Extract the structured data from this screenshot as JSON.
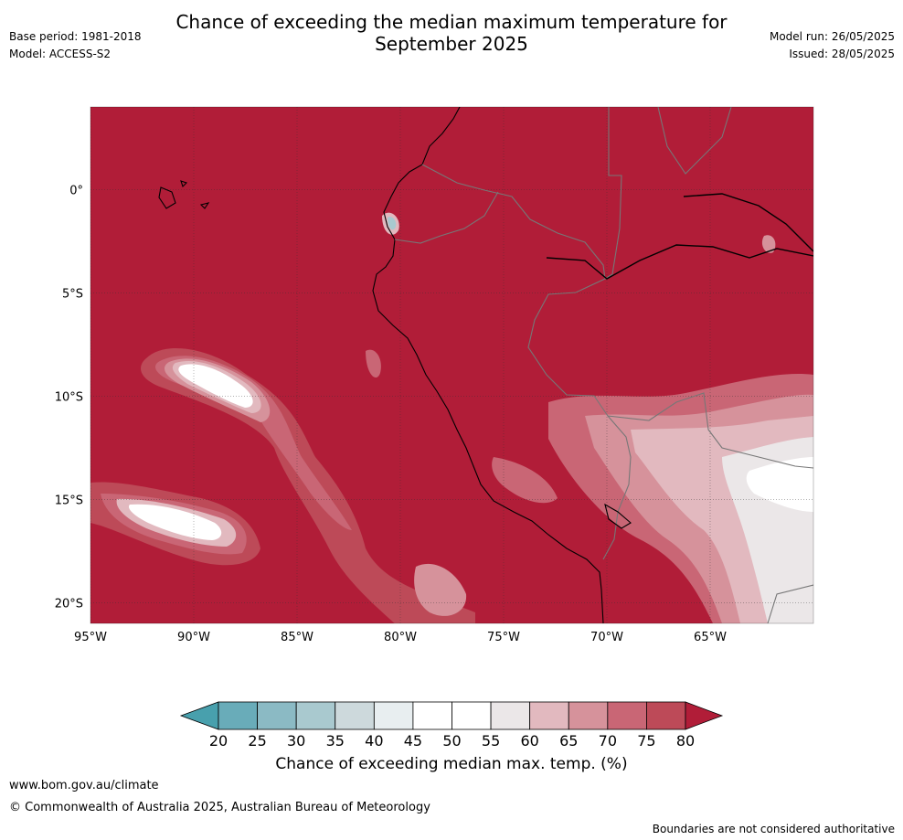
{
  "header": {
    "title_line1": "Chance of exceeding the median maximum temperature for",
    "title_line2": "September 2025",
    "base_period": "Base period: 1981-2018",
    "model": "Model: ACCESS-S2",
    "model_run": "Model run: 26/05/2025",
    "issued": "Issued: 28/05/2025"
  },
  "map": {
    "lon_range": [
      -95,
      -60
    ],
    "lat_range": [
      -21,
      4
    ],
    "lat_labels": [
      "0°",
      "5°S",
      "10°S",
      "15°S",
      "20°S"
    ],
    "lat_values": [
      0,
      -5,
      -10,
      -15,
      -20
    ],
    "lon_labels": [
      "95°W",
      "90°W",
      "85°W",
      "80°W",
      "75°W",
      "70°W",
      "65°W"
    ],
    "lon_values": [
      -95,
      -90,
      -85,
      -80,
      -75,
      -70,
      -65
    ],
    "background_color": "#b11d38"
  },
  "colorbar": {
    "ticks": [
      "20",
      "25",
      "30",
      "35",
      "40",
      "45",
      "50",
      "55",
      "60",
      "65",
      "70",
      "75",
      "80"
    ],
    "colors": [
      "#48a0ad",
      "#69acb9",
      "#8bbac4",
      "#a9c9cf",
      "#cdd9dc",
      "#e8eef0",
      "#ffffff",
      "#ffffff",
      "#ebe7e8",
      "#e2b9bf",
      "#d6929b",
      "#c96675",
      "#bd4a58",
      "#b11d38"
    ],
    "title": "Chance of exceeding median max. temp. (%)"
  },
  "footer": {
    "url": "www.bom.gov.au/climate",
    "copyright": "© Commonwealth of Australia 2025, Australian Bureau of Meteorology",
    "note": "Boundaries are not considered authoritative"
  }
}
